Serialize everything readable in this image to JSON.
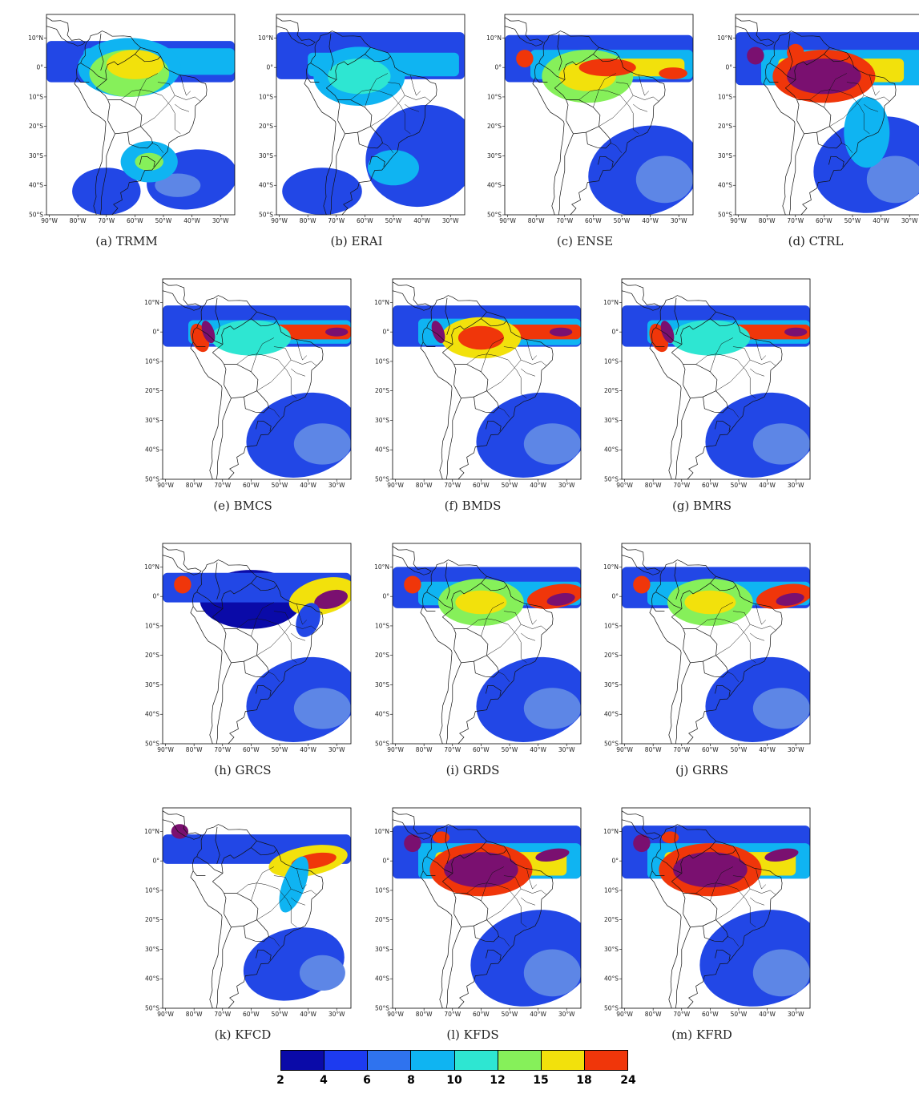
{
  "panels": [
    {
      "caption": "(a) TRMM",
      "style": "trmm"
    },
    {
      "caption": "(b) ERAI",
      "style": "erai"
    },
    {
      "caption": "(c) ENSE",
      "style": "ense"
    },
    {
      "caption": "(d) CTRL",
      "style": "ctrl"
    },
    {
      "caption": "(e) BMCS",
      "style": "bm"
    },
    {
      "caption": "(f) BMDS",
      "style": "bmd"
    },
    {
      "caption": "(g) BMRS",
      "style": "bm"
    },
    {
      "caption": "(h) GRCS",
      "style": "grcs"
    },
    {
      "caption": "(i) GRDS",
      "style": "gr"
    },
    {
      "caption": "(j) GRRS",
      "style": "gr"
    },
    {
      "caption": "(k) KFCD",
      "style": "kfcd"
    },
    {
      "caption": "(l) KFDS",
      "style": "kf"
    },
    {
      "caption": "(m) KFRD",
      "style": "kf"
    }
  ],
  "lat_ticks": [
    "10°N",
    "0°",
    "10°S",
    "20°S",
    "30°S",
    "40°S",
    "50°S"
  ],
  "lon_ticks": [
    "90°W",
    "80°W",
    "70°W",
    "60°W",
    "50°W",
    "40°W",
    "30°W"
  ],
  "colorbar": {
    "labels": [
      "2",
      "4",
      "6",
      "8",
      "10",
      "12",
      "15",
      "18",
      "24"
    ],
    "colors": [
      "#0a0aa8",
      "#1d3bf0",
      "#2f73ef",
      "#0fb4f2",
      "#2ee6d2",
      "#86f05a",
      "#f2e10c",
      "#f0360a"
    ]
  }
}
